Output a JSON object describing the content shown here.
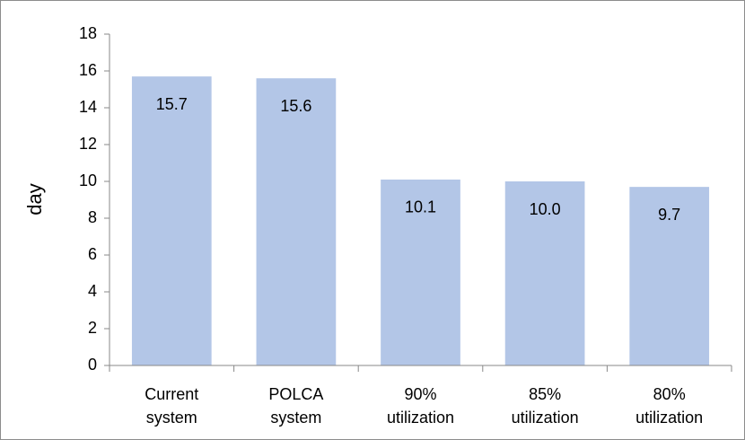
{
  "chart_data": {
    "type": "bar",
    "ylabel": "day",
    "categories": [
      "Current system",
      "POLCA system",
      "90% utilization",
      "85% utilization",
      "80% utilization"
    ],
    "values": [
      15.7,
      15.6,
      10.1,
      10.0,
      9.7
    ],
    "value_labels": [
      "15.7",
      "15.6",
      "10.1",
      "10.0",
      "9.7"
    ],
    "color": "#b3c6e7",
    "ylim": [
      0,
      18
    ],
    "yticks": [
      0,
      2,
      4,
      6,
      8,
      10,
      12,
      14,
      16,
      18
    ],
    "grid": false
  }
}
